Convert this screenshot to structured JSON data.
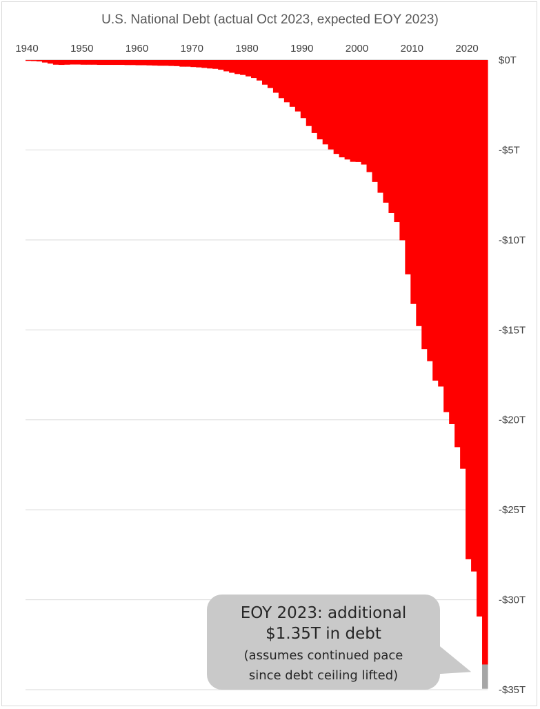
{
  "chart_data": {
    "type": "area",
    "title": "U.S. National Debt (actual Oct 2023, expected EOY 2023)",
    "x_axis": {
      "position": "top",
      "range": [
        1940,
        2024
      ],
      "ticks": [
        1940,
        1950,
        1960,
        1970,
        1980,
        1990,
        2000,
        2010,
        2020
      ],
      "tick_labels": [
        "1940",
        "1950",
        "1960",
        "1970",
        "1980",
        "1990",
        "2000",
        "2010",
        "2020"
      ]
    },
    "y_axis": {
      "position": "right",
      "range": [
        -35,
        0
      ],
      "ticks": [
        0,
        -5,
        -10,
        -15,
        -20,
        -25,
        -30,
        -35
      ],
      "tick_labels": [
        "$0T",
        "-$5T",
        "-$10T",
        "-$15T",
        "-$20T",
        "-$25T",
        "-$30T",
        "-$35T"
      ],
      "grid": true
    },
    "series": [
      {
        "color": "#ff0000",
        "x": [
          1940,
          1941,
          1942,
          1943,
          1944,
          1945,
          1946,
          1947,
          1948,
          1949,
          1950,
          1951,
          1952,
          1953,
          1954,
          1955,
          1956,
          1957,
          1958,
          1959,
          1960,
          1961,
          1962,
          1963,
          1964,
          1965,
          1966,
          1967,
          1968,
          1969,
          1970,
          1971,
          1972,
          1973,
          1974,
          1975,
          1976,
          1977,
          1978,
          1979,
          1980,
          1981,
          1982,
          1983,
          1984,
          1985,
          1986,
          1987,
          1988,
          1989,
          1990,
          1991,
          1992,
          1993,
          1994,
          1995,
          1996,
          1997,
          1998,
          1999,
          2000,
          2001,
          2002,
          2003,
          2004,
          2005,
          2006,
          2007,
          2008,
          2009,
          2010,
          2011,
          2012,
          2013,
          2014,
          2015,
          2016,
          2017,
          2018,
          2019,
          2020,
          2021,
          2022,
          2023
        ],
        "values": [
          -0.05,
          -0.06,
          -0.08,
          -0.14,
          -0.2,
          -0.26,
          -0.27,
          -0.26,
          -0.25,
          -0.25,
          -0.26,
          -0.26,
          -0.26,
          -0.27,
          -0.27,
          -0.27,
          -0.27,
          -0.27,
          -0.28,
          -0.28,
          -0.29,
          -0.29,
          -0.3,
          -0.31,
          -0.32,
          -0.32,
          -0.33,
          -0.34,
          -0.37,
          -0.37,
          -0.39,
          -0.41,
          -0.44,
          -0.47,
          -0.49,
          -0.54,
          -0.63,
          -0.71,
          -0.78,
          -0.83,
          -0.91,
          -1.0,
          -1.14,
          -1.37,
          -1.56,
          -1.82,
          -2.12,
          -2.35,
          -2.6,
          -2.86,
          -3.23,
          -3.67,
          -4.06,
          -4.41,
          -4.69,
          -4.97,
          -5.22,
          -5.41,
          -5.53,
          -5.66,
          -5.67,
          -5.81,
          -6.23,
          -6.78,
          -7.38,
          -7.93,
          -8.51,
          -9.01,
          -10.02,
          -11.91,
          -13.56,
          -14.79,
          -16.07,
          -16.74,
          -17.82,
          -18.15,
          -19.57,
          -20.24,
          -21.52,
          -22.72,
          -27.75,
          -28.43,
          -30.93,
          -33.6
        ]
      },
      {
        "color": "#a6a6a6",
        "x": [
          2023
        ],
        "from": -33.6,
        "values": [
          -34.95
        ]
      }
    ],
    "annotation": {
      "text": "EOY 2023: additional $1.35T in debt",
      "subtext": "(assumes continued pace since debt ceiling lifted)",
      "line1": "EOY 2023: additional",
      "line2": "$1.35T in debt",
      "line3": "(assumes continued pace",
      "line4": "since debt ceiling lifted)",
      "color": "#c9c9c9"
    }
  }
}
